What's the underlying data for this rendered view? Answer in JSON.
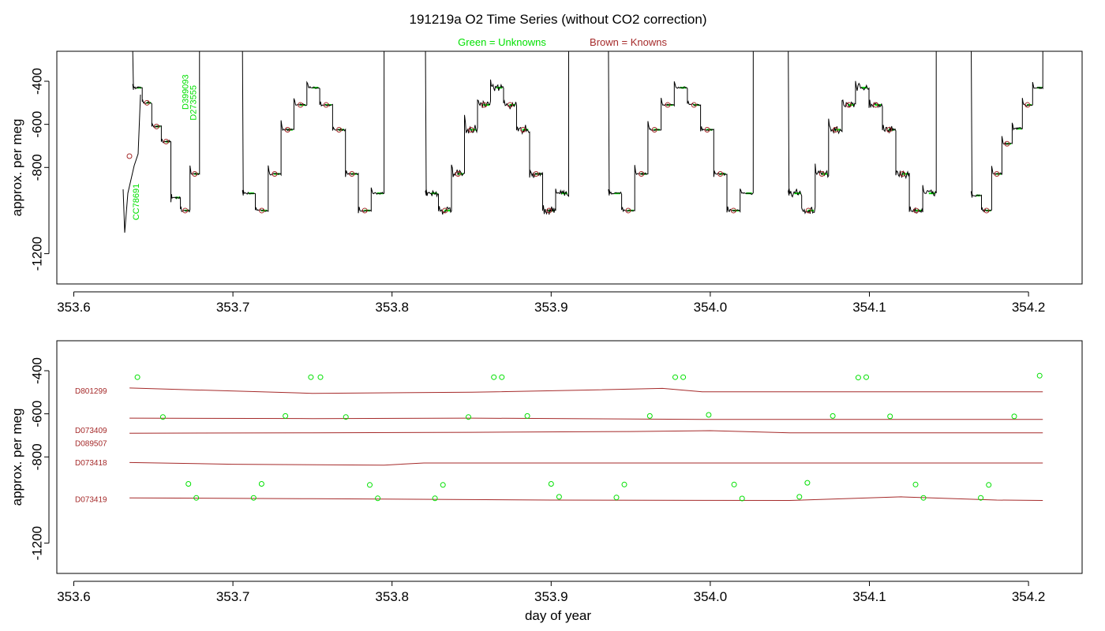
{
  "title": "191219a   O2 Time Series (without CO2 correction)",
  "legend": {
    "unknowns_label": "Green = Unknowns",
    "knowns_label": "Brown = Knowns"
  },
  "xlabel": "day of year",
  "colors": {
    "trace": "#000000",
    "unknowns": "#00e000",
    "knowns": "#a52a2a",
    "frame": "#000000"
  },
  "chart_data": [
    {
      "type": "line",
      "panel": "top",
      "ylabel": "approx. per meg",
      "xlim": [
        353.6,
        354.22
      ],
      "ylim": [
        -1300,
        -300
      ],
      "y_reversed": true,
      "xticks": [
        353.6,
        353.7,
        353.8,
        353.9,
        354.0,
        354.1,
        354.2
      ],
      "xtick_labels": [
        "353.6",
        "353.7",
        "353.8",
        "353.9",
        "354.0",
        "354.1",
        "354.2"
      ],
      "yticks": [
        -400,
        -600,
        -800,
        -1200
      ],
      "ytick_labels": [
        "-400",
        "-600",
        "-800",
        "-1200"
      ],
      "cycles": [
        {
          "start": 353.637,
          "end": 353.679
        },
        {
          "start": 353.706,
          "end": 353.795
        },
        {
          "start": 353.821,
          "end": 353.911
        },
        {
          "start": 353.936,
          "end": 354.027
        },
        {
          "start": 354.049,
          "end": 354.142
        },
        {
          "start": 354.164,
          "end": 354.209
        }
      ],
      "plateau_levels": [
        -920,
        -1000,
        -830,
        -625,
        -510,
        -430,
        -510,
        -625,
        -830,
        -1000,
        -920
      ],
      "noisy_cycles": [
        2,
        4
      ],
      "sample_labels": [
        {
          "text": "CC78691",
          "x": 353.641,
          "y": -960
        },
        {
          "text": "D399093",
          "x": 353.672,
          "y": -450
        },
        {
          "text": "D273555",
          "x": 353.677,
          "y": -500
        }
      ]
    },
    {
      "type": "scatter",
      "panel": "bottom",
      "ylabel": "approx. per meg",
      "xlim": [
        353.6,
        354.22
      ],
      "ylim": [
        -1300,
        -300
      ],
      "y_reversed": true,
      "xticks": [
        353.6,
        353.7,
        353.8,
        353.9,
        354.0,
        354.1,
        354.2
      ],
      "xtick_labels": [
        "353.6",
        "353.7",
        "353.8",
        "353.9",
        "354.0",
        "354.1",
        "354.2"
      ],
      "yticks": [
        -400,
        -600,
        -800,
        -1200
      ],
      "ytick_labels": [
        "-400",
        "-600",
        "-800",
        "-1200"
      ],
      "knowns": [
        {
          "name": "D801299",
          "label_y": -506,
          "x": [
            353.635,
            353.75,
            353.85,
            353.92,
            353.97,
            353.995,
            354.05,
            354.209
          ],
          "y": [
            -480,
            -505,
            -500,
            -490,
            -482,
            -498,
            -498,
            -498
          ]
        },
        {
          "name": "D073409",
          "label_y": -690,
          "x": [
            353.635,
            353.75,
            353.85,
            353.95,
            354.0,
            354.05,
            354.209
          ],
          "y": [
            -690,
            -688,
            -686,
            -682,
            -678,
            -688,
            -688
          ]
        },
        {
          "name": "D089507",
          "label_y": -750,
          "x": [
            353.635,
            353.75,
            353.85,
            354.0,
            354.209
          ],
          "y": [
            -620,
            -622,
            -620,
            -626,
            -626
          ]
        },
        {
          "name": "D073418",
          "label_y": -840,
          "x": [
            353.635,
            353.7,
            353.795,
            353.82,
            354.0,
            354.209
          ],
          "y": [
            -826,
            -834,
            -838,
            -828,
            -828,
            -828
          ]
        },
        {
          "name": "D073419",
          "label_y": -1010,
          "x": [
            353.635,
            353.75,
            353.9,
            354.05,
            354.12,
            354.18,
            354.209
          ],
          "y": [
            -990,
            -994,
            -1000,
            -1002,
            -985,
            -1000,
            -1002
          ]
        }
      ],
      "unknowns": {
        "x": [
          353.64,
          353.656,
          353.672,
          353.677,
          353.713,
          353.718,
          353.733,
          353.749,
          353.755,
          353.771,
          353.786,
          353.791,
          353.827,
          353.832,
          353.848,
          353.864,
          353.869,
          353.885,
          353.9,
          353.905,
          353.941,
          353.946,
          353.962,
          353.978,
          353.983,
          353.999,
          354.015,
          354.02,
          354.056,
          354.061,
          354.077,
          354.093,
          354.098,
          354.113,
          354.129,
          354.134,
          354.17,
          354.175,
          354.191,
          354.207
        ],
        "y": [
          -430,
          -615,
          -925,
          -990,
          -990,
          -925,
          -610,
          -430,
          -430,
          -615,
          -930,
          -992,
          -992,
          -930,
          -615,
          -430,
          -430,
          -610,
          -925,
          -985,
          -988,
          -928,
          -610,
          -430,
          -430,
          -605,
          -928,
          -993,
          -985,
          -920,
          -610,
          -432,
          -430,
          -612,
          -928,
          -990,
          -990,
          -930,
          -612,
          -423
        ]
      }
    }
  ]
}
